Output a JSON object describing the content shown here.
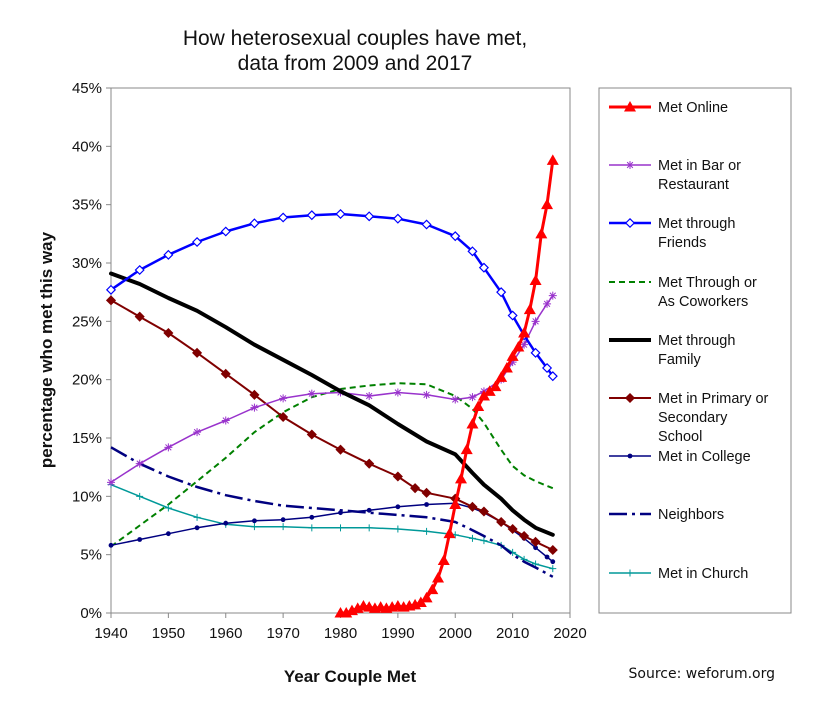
{
  "chart_data": {
    "type": "line",
    "title_lines": [
      "How heterosexual couples have met,",
      "data from 2009 and 2017"
    ],
    "xlabel": "Year Couple Met",
    "ylabel": "percentage who met this way",
    "xlim": [
      1940,
      2020
    ],
    "ylim": [
      0,
      45
    ],
    "x_ticks": [
      "1940",
      "1950",
      "1960",
      "1970",
      "1980",
      "1990",
      "2000",
      "2010",
      "2020"
    ],
    "y_ticks": [
      "0%",
      "5%",
      "10%",
      "15%",
      "20%",
      "25%",
      "30%",
      "35%",
      "40%",
      "45%"
    ],
    "grid": false,
    "legend_position": "right",
    "source": "Source: weforum.org",
    "series": [
      {
        "id": "online",
        "legend": [
          "Met Online"
        ],
        "color": "#ff0000",
        "dash": "",
        "width": 3,
        "marker": "triangle",
        "points": [
          [
            1980,
            0
          ],
          [
            1981,
            0
          ],
          [
            1982,
            0.2
          ],
          [
            1983,
            0.4
          ],
          [
            1984,
            0.6
          ],
          [
            1985,
            0.5
          ],
          [
            1986,
            0.4
          ],
          [
            1987,
            0.5
          ],
          [
            1988,
            0.4
          ],
          [
            1989,
            0.5
          ],
          [
            1990,
            0.6
          ],
          [
            1991,
            0.5
          ],
          [
            1992,
            0.6
          ],
          [
            1993,
            0.7
          ],
          [
            1994,
            0.9
          ],
          [
            1995,
            1.3
          ],
          [
            1996,
            2.0
          ],
          [
            1997,
            3.0
          ],
          [
            1998,
            4.5
          ],
          [
            1999,
            6.8
          ],
          [
            2000,
            9.3
          ],
          [
            2001,
            11.5
          ],
          [
            2002,
            14.0
          ],
          [
            2003,
            16.2
          ],
          [
            2004,
            17.7
          ],
          [
            2005,
            18.6
          ],
          [
            2006,
            19.0
          ],
          [
            2007,
            19.4
          ],
          [
            2008,
            20.2
          ],
          [
            2009,
            21.0
          ],
          [
            2010,
            22.0
          ],
          [
            2011,
            22.8
          ],
          [
            2012,
            24.0
          ],
          [
            2013,
            26.0
          ],
          [
            2014,
            28.5
          ],
          [
            2015,
            32.5
          ],
          [
            2016,
            35.0
          ],
          [
            2017,
            38.8
          ]
        ]
      },
      {
        "id": "bar",
        "legend": [
          "Met in Bar or",
          "Restaurant"
        ],
        "color": "#9933cc",
        "dash": "",
        "width": 1.5,
        "marker": "star",
        "points": [
          [
            1940,
            11.2
          ],
          [
            1945,
            12.8
          ],
          [
            1950,
            14.2
          ],
          [
            1955,
            15.5
          ],
          [
            1960,
            16.5
          ],
          [
            1965,
            17.6
          ],
          [
            1970,
            18.4
          ],
          [
            1975,
            18.8
          ],
          [
            1980,
            18.9
          ],
          [
            1985,
            18.6
          ],
          [
            1990,
            18.9
          ],
          [
            1995,
            18.7
          ],
          [
            2000,
            18.3
          ],
          [
            2003,
            18.5
          ],
          [
            2005,
            19.0
          ],
          [
            2008,
            20.0
          ],
          [
            2010,
            21.5
          ],
          [
            2012,
            23.0
          ],
          [
            2014,
            25.0
          ],
          [
            2016,
            26.5
          ],
          [
            2017,
            27.2
          ]
        ]
      },
      {
        "id": "friends",
        "legend": [
          "Met through",
          "Friends"
        ],
        "color": "#0000ff",
        "dash": "",
        "width": 2.5,
        "marker": "diamond-open",
        "points": [
          [
            1940,
            27.7
          ],
          [
            1945,
            29.4
          ],
          [
            1950,
            30.7
          ],
          [
            1955,
            31.8
          ],
          [
            1960,
            32.7
          ],
          [
            1965,
            33.4
          ],
          [
            1970,
            33.9
          ],
          [
            1975,
            34.1
          ],
          [
            1980,
            34.2
          ],
          [
            1985,
            34.0
          ],
          [
            1990,
            33.8
          ],
          [
            1995,
            33.3
          ],
          [
            2000,
            32.3
          ],
          [
            2003,
            31.0
          ],
          [
            2005,
            29.6
          ],
          [
            2008,
            27.5
          ],
          [
            2010,
            25.5
          ],
          [
            2012,
            23.8
          ],
          [
            2014,
            22.3
          ],
          [
            2016,
            21.0
          ],
          [
            2017,
            20.3
          ]
        ]
      },
      {
        "id": "coworkers",
        "legend": [
          "Met Through or",
          "As Coworkers"
        ],
        "color": "#008000",
        "dash": "6,4",
        "width": 2,
        "marker": "none",
        "points": [
          [
            1940,
            5.7
          ],
          [
            1945,
            7.5
          ],
          [
            1950,
            9.3
          ],
          [
            1955,
            11.3
          ],
          [
            1960,
            13.3
          ],
          [
            1965,
            15.5
          ],
          [
            1970,
            17.2
          ],
          [
            1975,
            18.5
          ],
          [
            1980,
            19.2
          ],
          [
            1985,
            19.5
          ],
          [
            1990,
            19.7
          ],
          [
            1995,
            19.6
          ],
          [
            2000,
            18.6
          ],
          [
            2003,
            17.5
          ],
          [
            2005,
            16.3
          ],
          [
            2008,
            14.0
          ],
          [
            2010,
            12.6
          ],
          [
            2012,
            11.8
          ],
          [
            2014,
            11.3
          ],
          [
            2017,
            10.7
          ]
        ]
      },
      {
        "id": "family",
        "legend": [
          "Met through",
          "Family"
        ],
        "color": "#000000",
        "dash": "",
        "width": 4,
        "marker": "none",
        "points": [
          [
            1940,
            29.1
          ],
          [
            1945,
            28.2
          ],
          [
            1950,
            27.0
          ],
          [
            1955,
            25.9
          ],
          [
            1960,
            24.5
          ],
          [
            1965,
            23.0
          ],
          [
            1970,
            21.7
          ],
          [
            1975,
            20.4
          ],
          [
            1980,
            19.0
          ],
          [
            1985,
            17.8
          ],
          [
            1990,
            16.2
          ],
          [
            1995,
            14.7
          ],
          [
            2000,
            13.6
          ],
          [
            2003,
            12.0
          ],
          [
            2005,
            11.0
          ],
          [
            2008,
            9.8
          ],
          [
            2010,
            8.8
          ],
          [
            2012,
            8.0
          ],
          [
            2014,
            7.3
          ],
          [
            2017,
            6.7
          ]
        ]
      },
      {
        "id": "school",
        "legend": [
          "Met in Primary or",
          "Secondary",
          "School"
        ],
        "color": "#800000",
        "dash": "",
        "width": 2,
        "marker": "diamond",
        "points": [
          [
            1940,
            26.8
          ],
          [
            1945,
            25.4
          ],
          [
            1950,
            24.0
          ],
          [
            1955,
            22.3
          ],
          [
            1960,
            20.5
          ],
          [
            1965,
            18.7
          ],
          [
            1970,
            16.8
          ],
          [
            1975,
            15.3
          ],
          [
            1980,
            14.0
          ],
          [
            1985,
            12.8
          ],
          [
            1990,
            11.7
          ],
          [
            1993,
            10.7
          ],
          [
            1995,
            10.3
          ],
          [
            2000,
            9.8
          ],
          [
            2003,
            9.1
          ],
          [
            2005,
            8.7
          ],
          [
            2008,
            7.8
          ],
          [
            2010,
            7.2
          ],
          [
            2012,
            6.6
          ],
          [
            2014,
            6.1
          ],
          [
            2017,
            5.4
          ]
        ]
      },
      {
        "id": "college",
        "legend": [
          "Met in College"
        ],
        "color": "#000080",
        "dash": "",
        "width": 1.5,
        "marker": "dot",
        "points": [
          [
            1940,
            5.8
          ],
          [
            1945,
            6.3
          ],
          [
            1950,
            6.8
          ],
          [
            1955,
            7.3
          ],
          [
            1960,
            7.7
          ],
          [
            1965,
            7.9
          ],
          [
            1970,
            8.0
          ],
          [
            1975,
            8.2
          ],
          [
            1980,
            8.6
          ],
          [
            1985,
            8.8
          ],
          [
            1990,
            9.1
          ],
          [
            1995,
            9.3
          ],
          [
            2000,
            9.4
          ],
          [
            2003,
            9.0
          ],
          [
            2005,
            8.6
          ],
          [
            2008,
            7.8
          ],
          [
            2010,
            7.1
          ],
          [
            2012,
            6.4
          ],
          [
            2014,
            5.6
          ],
          [
            2016,
            4.8
          ],
          [
            2017,
            4.4
          ]
        ]
      },
      {
        "id": "neighbors",
        "legend": [
          "Neighbors"
        ],
        "color": "#000080",
        "dash": "18,5,3,5",
        "width": 2.5,
        "marker": "none",
        "points": [
          [
            1940,
            14.2
          ],
          [
            1945,
            12.8
          ],
          [
            1950,
            11.7
          ],
          [
            1955,
            10.8
          ],
          [
            1960,
            10.1
          ],
          [
            1965,
            9.6
          ],
          [
            1970,
            9.2
          ],
          [
            1975,
            9.0
          ],
          [
            1980,
            8.8
          ],
          [
            1985,
            8.6
          ],
          [
            1990,
            8.4
          ],
          [
            1995,
            8.2
          ],
          [
            2000,
            7.8
          ],
          [
            2003,
            7.1
          ],
          [
            2005,
            6.6
          ],
          [
            2008,
            5.8
          ],
          [
            2010,
            5.0
          ],
          [
            2012,
            4.4
          ],
          [
            2014,
            3.9
          ],
          [
            2017,
            3.1
          ]
        ]
      },
      {
        "id": "church",
        "legend": [
          "Met in Church"
        ],
        "color": "#009999",
        "dash": "",
        "width": 1.5,
        "marker": "plus",
        "points": [
          [
            1940,
            11.0
          ],
          [
            1945,
            10.0
          ],
          [
            1950,
            9.0
          ],
          [
            1955,
            8.2
          ],
          [
            1960,
            7.6
          ],
          [
            1965,
            7.4
          ],
          [
            1970,
            7.4
          ],
          [
            1975,
            7.3
          ],
          [
            1980,
            7.3
          ],
          [
            1985,
            7.3
          ],
          [
            1990,
            7.2
          ],
          [
            1995,
            7.0
          ],
          [
            2000,
            6.7
          ],
          [
            2003,
            6.4
          ],
          [
            2005,
            6.2
          ],
          [
            2008,
            5.8
          ],
          [
            2010,
            5.2
          ],
          [
            2012,
            4.6
          ],
          [
            2014,
            4.2
          ],
          [
            2017,
            3.8
          ]
        ]
      }
    ]
  }
}
